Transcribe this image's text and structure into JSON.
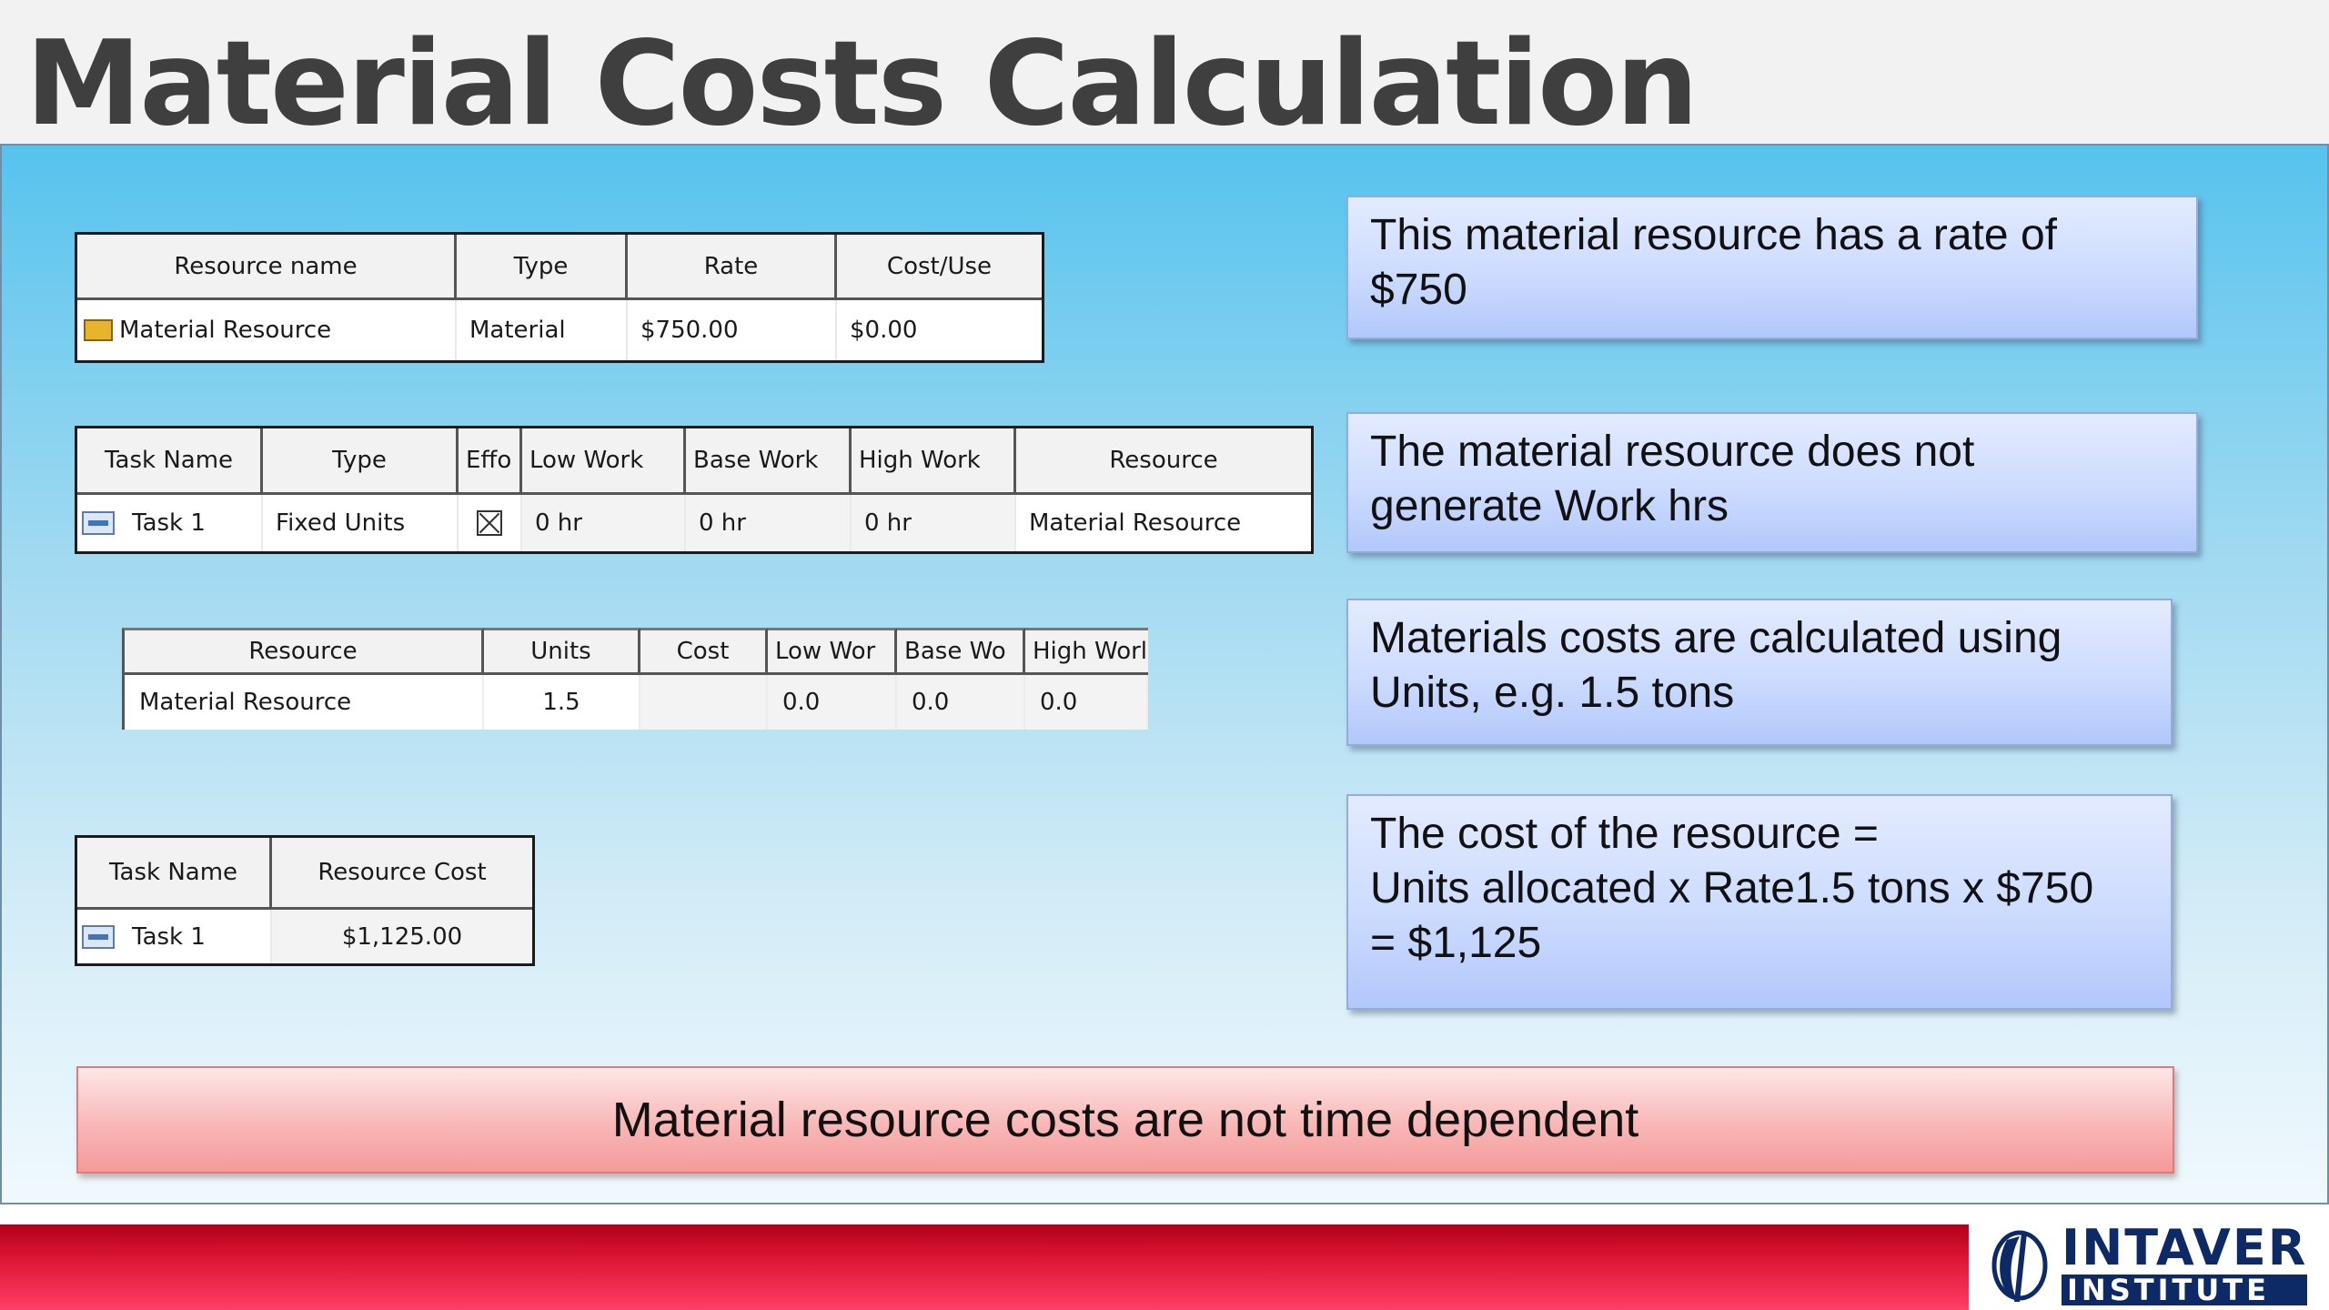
{
  "slide": {
    "title": "Material Costs Calculation"
  },
  "resource_table": {
    "headers": [
      "Resource name",
      "Type",
      "Rate",
      "Cost/Use"
    ],
    "row": {
      "icon": "material-resource-icon",
      "name": "Material  Resource",
      "type": "Material",
      "rate": "$750.00",
      "cost_use": "$0.00"
    }
  },
  "task_table": {
    "headers": [
      "Task Name",
      "Type",
      "Effo",
      "Low Work",
      "Base Work",
      "High Work",
      "Resource"
    ],
    "row": {
      "icon": "task-icon",
      "name": "Task 1",
      "type": "Fixed Units",
      "effort_driven_icon": "checkbox-x-icon",
      "low_work": "0 hr",
      "base_work": "0 hr",
      "high_work": "0 hr",
      "resource": "Material  Resource"
    }
  },
  "assignment_table": {
    "headers": [
      "Resource",
      "Units",
      "Cost",
      "Low Wor",
      "Base Wo",
      "High Worl"
    ],
    "row": {
      "resource": "Material Resource",
      "units": "1.5",
      "cost": "",
      "low_work": "0.0",
      "base_work": "0.0",
      "high_work": "0.0"
    }
  },
  "cost_table": {
    "headers": [
      "Task Name",
      "Resource Cost"
    ],
    "row": {
      "icon": "task-icon",
      "name": "Task 1",
      "resource_cost": "$1,125.00"
    }
  },
  "callouts": [
    "This material resource has a rate of\n$750",
    "The material resource does not\ngenerate Work hrs",
    "Materials costs are calculated using\nUnits, e.g. 1.5 tons",
    "The cost of the resource  =\nUnits allocated x Rate1.5 tons x $750\n= $1,125"
  ],
  "summary": {
    "text": "Material resource costs are not time dependent"
  },
  "logo": {
    "line1": "INTAVER",
    "line2": "INSTITUTE"
  },
  "colors": {
    "title_text": "#3f3f3f",
    "panel_top": "#56c3ee",
    "callout_fill": "#ccdbff",
    "summary_fill": "#f9b7b7",
    "footer_red": "#dc1635",
    "logo_navy": "#0d2a66"
  }
}
